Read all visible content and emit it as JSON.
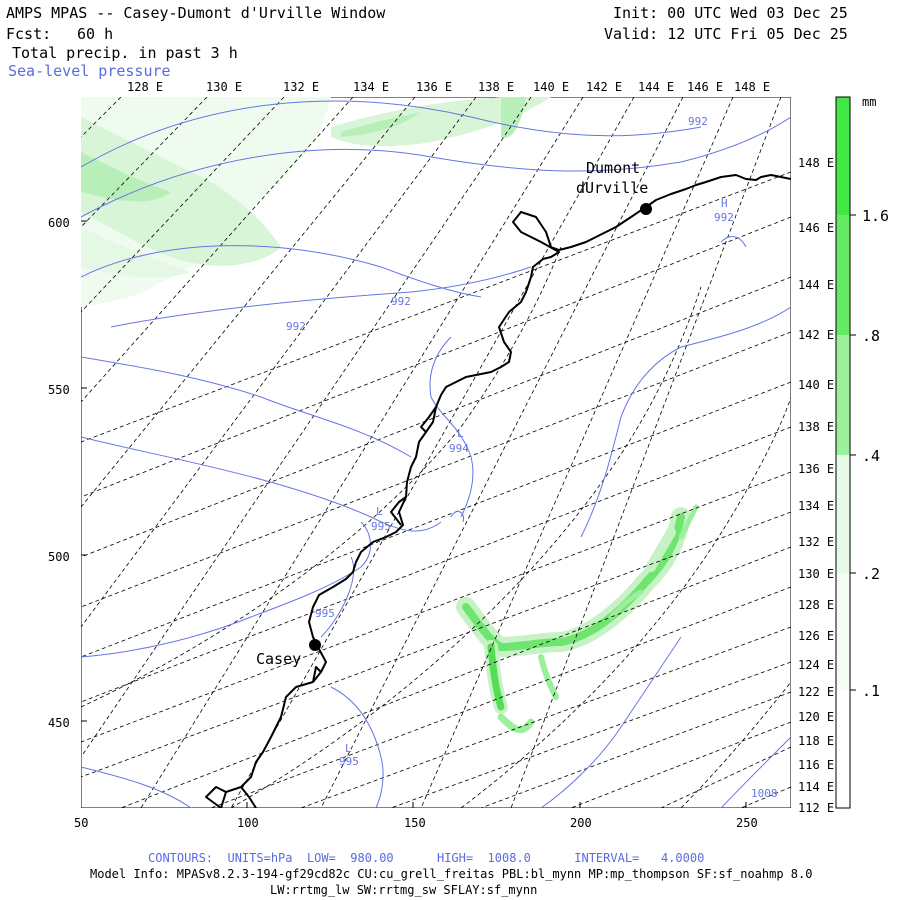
{
  "header": {
    "title": "AMPS MPAS -- Casey-Dumont d'Urville Window",
    "fcst_label": "Fcst:",
    "fcst_value": "60 h",
    "field": "Total precip. in past 3 h",
    "overlay": "Sea-level pressure",
    "init": "Init: 00 UTC Wed 03 Dec 25",
    "valid": "Valid: 12 UTC Fri 05 Dec 25"
  },
  "map": {
    "top_lon_labels": [
      "128 E",
      "130 E",
      "132 E",
      "134 E",
      "136 E",
      "138 E",
      "140 E",
      "142 E",
      "144 E",
      "146 E",
      "148 E"
    ],
    "right_lon_labels": [
      "148 E",
      "146 E",
      "144 E",
      "142 E",
      "140 E",
      "138 E",
      "136 E",
      "134 E",
      "132 E",
      "130 E",
      "128 E",
      "126 E",
      "124 E",
      "122 E",
      "120 E",
      "118 E",
      "116 E",
      "114 E",
      "112 E"
    ],
    "x_ticks": [
      "50",
      "100",
      "150",
      "200",
      "250"
    ],
    "y_ticks": [
      "600",
      "550",
      "500",
      "450"
    ],
    "stations": [
      {
        "name": "Casey"
      },
      {
        "name_line1": "Dumont",
        "name_line2": "dUrville"
      }
    ],
    "pressure_labels": [
      "992",
      "992",
      "992",
      "992",
      "H",
      "994",
      "L",
      "995",
      "L",
      "995",
      "L",
      "995",
      "995",
      "1008"
    ]
  },
  "colorbar": {
    "unit": "mm",
    "labels": [
      "1.6",
      ".8",
      ".4",
      ".2",
      ".1"
    ],
    "colors": [
      "#44e844",
      "#9bf09b",
      "#d4f7d4",
      "#f2fcf2"
    ]
  },
  "footer": {
    "contours": "CONTOURS:  UNITS=hPa  LOW=  980.00      HIGH=  1008.0      INTERVAL=   4.0000",
    "model_info": "Model Info: MPASv8.2.3-194-gf29cd82c CU:cu_grell_freitas PBL:bl_mynn MP:mp_thompson SF:sf_noahmp 8.0",
    "model_info2": "LW:rrtmg_lw SW:rrtmg_sw SFLAY:sf_mynn"
  },
  "colors": {
    "contour": "#5a6be0",
    "precip_light": "#dff7df",
    "precip_mid": "#9bf09b",
    "precip_high": "#44e844",
    "graticule": "#000000",
    "coast": "#000000"
  }
}
